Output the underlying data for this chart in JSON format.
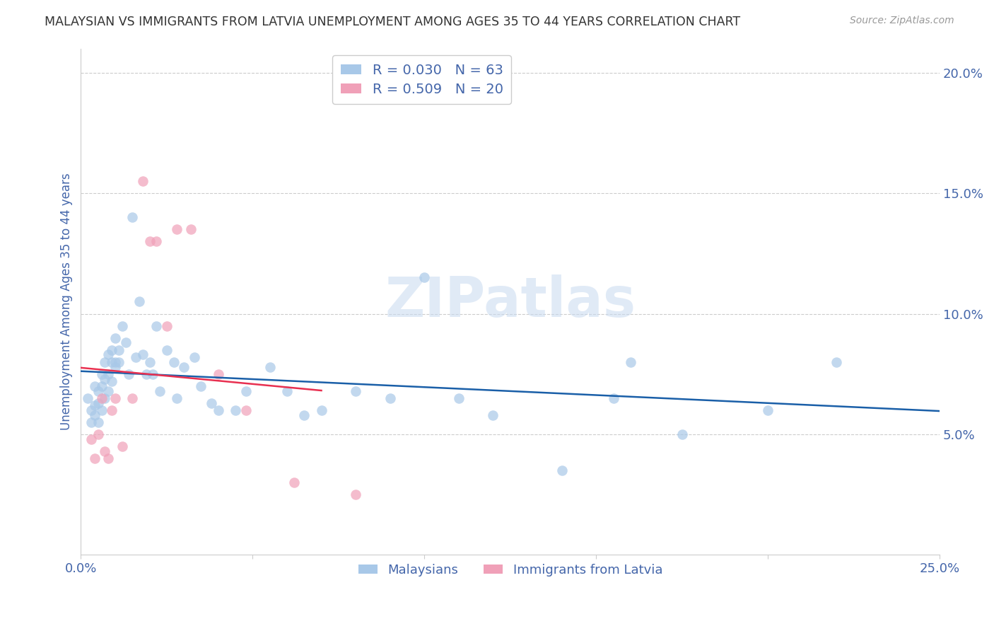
{
  "title": "MALAYSIAN VS IMMIGRANTS FROM LATVIA UNEMPLOYMENT AMONG AGES 35 TO 44 YEARS CORRELATION CHART",
  "source": "Source: ZipAtlas.com",
  "ylabel": "Unemployment Among Ages 35 to 44 years",
  "xlim": [
    0,
    0.25
  ],
  "ylim": [
    0,
    0.21
  ],
  "y_ticks_right": [
    0.05,
    0.1,
    0.15,
    0.2
  ],
  "y_tick_labels_right": [
    "5.0%",
    "10.0%",
    "15.0%",
    "20.0%"
  ],
  "malaysian_color": "#a8c8e8",
  "latvia_color": "#f0a0b8",
  "watermark": "ZIPatlas",
  "background_color": "#ffffff",
  "grid_color": "#cccccc",
  "axis_label_color": "#4466aa",
  "reg_mal_color": "#1a5fa8",
  "reg_lat_color": "#e83050",
  "legend1_label": "R = 0.030   N = 63",
  "legend2_label": "R = 0.509   N = 20",
  "malaysians_x": [
    0.002,
    0.003,
    0.003,
    0.004,
    0.004,
    0.004,
    0.005,
    0.005,
    0.005,
    0.006,
    0.006,
    0.006,
    0.007,
    0.007,
    0.007,
    0.008,
    0.008,
    0.008,
    0.009,
    0.009,
    0.009,
    0.01,
    0.01,
    0.01,
    0.011,
    0.011,
    0.012,
    0.013,
    0.014,
    0.015,
    0.016,
    0.017,
    0.018,
    0.019,
    0.02,
    0.021,
    0.022,
    0.023,
    0.025,
    0.027,
    0.028,
    0.03,
    0.033,
    0.035,
    0.038,
    0.04,
    0.045,
    0.048,
    0.055,
    0.06,
    0.065,
    0.07,
    0.08,
    0.09,
    0.1,
    0.11,
    0.12,
    0.14,
    0.155,
    0.16,
    0.175,
    0.2,
    0.22
  ],
  "malaysians_y": [
    0.065,
    0.06,
    0.055,
    0.07,
    0.062,
    0.058,
    0.068,
    0.063,
    0.055,
    0.075,
    0.07,
    0.06,
    0.08,
    0.073,
    0.065,
    0.083,
    0.075,
    0.068,
    0.08,
    0.085,
    0.072,
    0.08,
    0.09,
    0.078,
    0.085,
    0.08,
    0.095,
    0.088,
    0.075,
    0.14,
    0.082,
    0.105,
    0.083,
    0.075,
    0.08,
    0.075,
    0.095,
    0.068,
    0.085,
    0.08,
    0.065,
    0.078,
    0.082,
    0.07,
    0.063,
    0.06,
    0.06,
    0.068,
    0.078,
    0.068,
    0.058,
    0.06,
    0.068,
    0.065,
    0.115,
    0.065,
    0.058,
    0.035,
    0.065,
    0.08,
    0.05,
    0.06,
    0.08
  ],
  "latvia_x": [
    0.003,
    0.004,
    0.005,
    0.006,
    0.007,
    0.008,
    0.009,
    0.01,
    0.012,
    0.015,
    0.018,
    0.02,
    0.022,
    0.025,
    0.028,
    0.032,
    0.04,
    0.048,
    0.062,
    0.08
  ],
  "latvia_y": [
    0.048,
    0.04,
    0.05,
    0.065,
    0.043,
    0.04,
    0.06,
    0.065,
    0.045,
    0.065,
    0.155,
    0.13,
    0.13,
    0.095,
    0.135,
    0.135,
    0.075,
    0.06,
    0.03,
    0.025
  ]
}
